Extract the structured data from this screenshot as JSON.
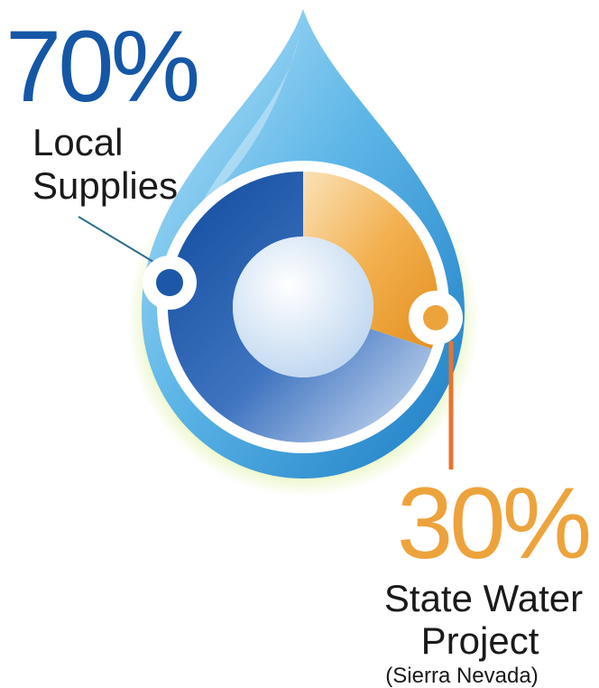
{
  "chart_data": {
    "type": "pie",
    "style": "donut inside water drop",
    "slices": [
      {
        "key": "local",
        "percent_label": "70%",
        "value": 70,
        "label_lines": [
          "Local",
          "Supplies"
        ],
        "color": "#1d57a8"
      },
      {
        "key": "swp",
        "percent_label": "30%",
        "value": 30,
        "label_lines": [
          "State Water",
          "Project"
        ],
        "note": "(Sierra Nevada)",
        "color": "#eda33c"
      }
    ],
    "leader_colors": {
      "local": "#2c6e8a",
      "swp": "#e8732c"
    },
    "drop_colors": {
      "light": "#9fd6f3",
      "mid": "#4aa9e0",
      "dark": "#1c7cc4",
      "glow": "#d8ef9a"
    }
  }
}
